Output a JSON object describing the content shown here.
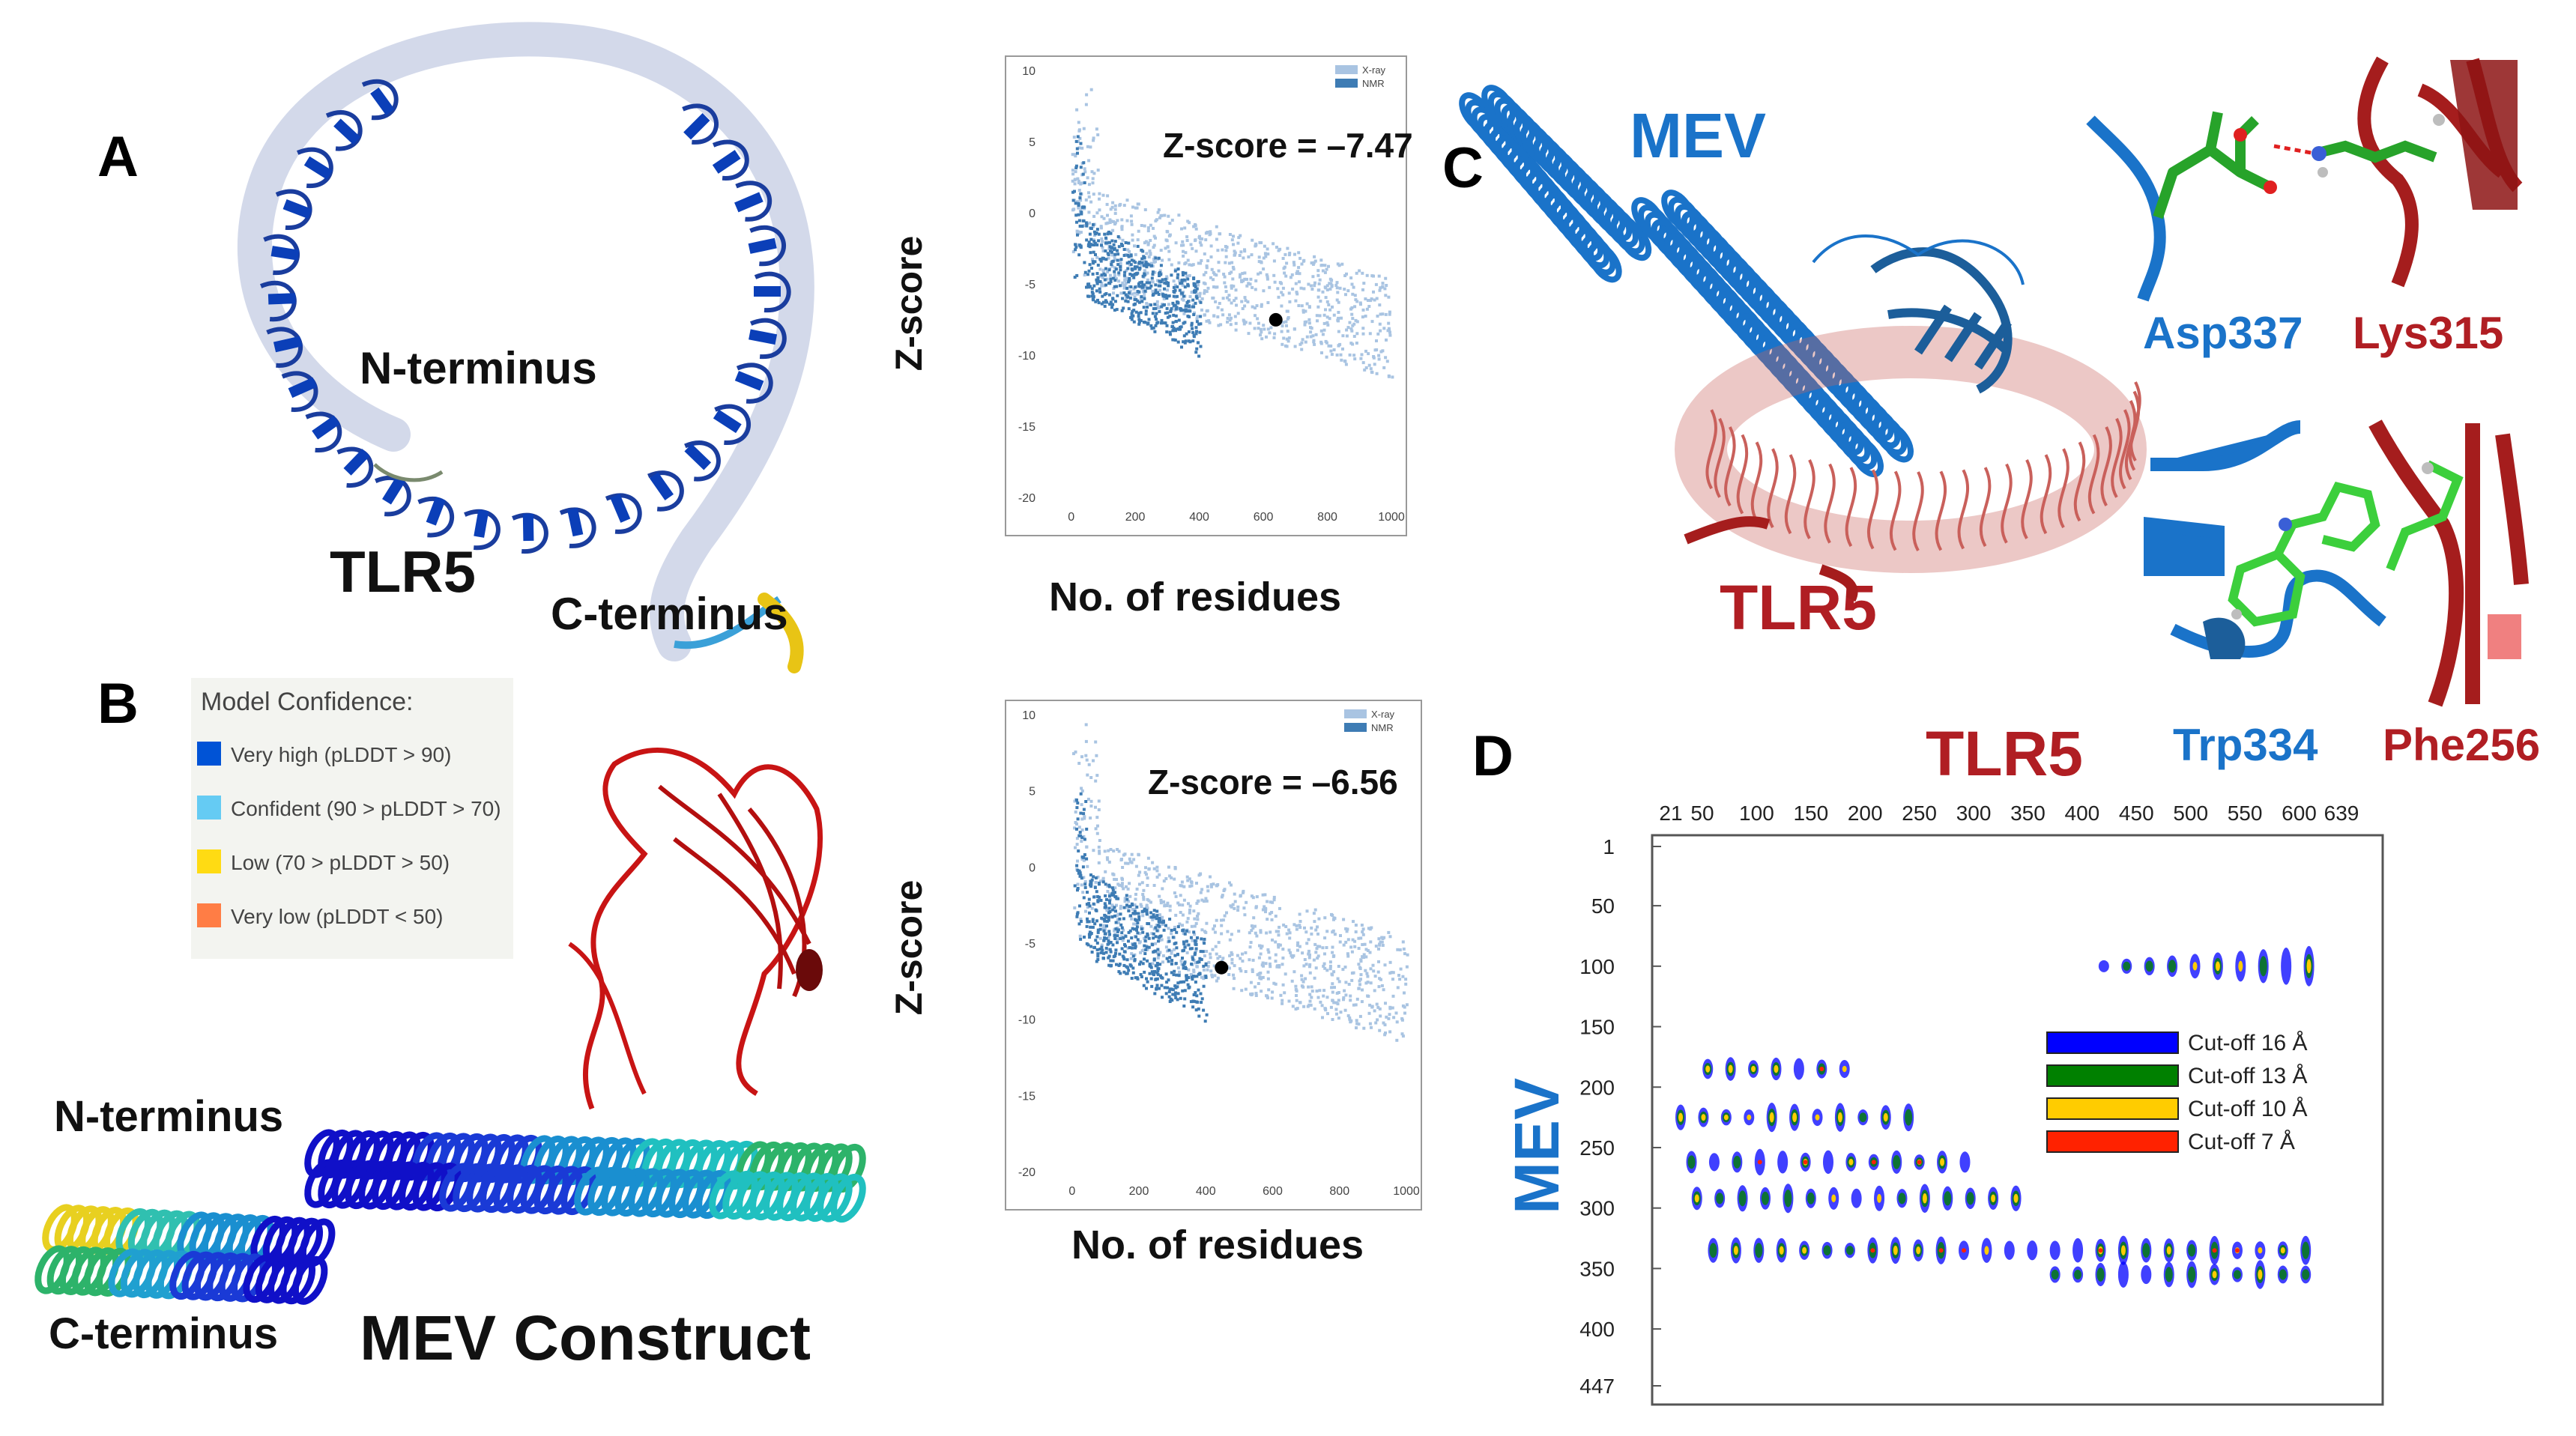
{
  "panels": {
    "A": {
      "letter": "A",
      "protein_label": "TLR5",
      "n_terminus": "N-terminus",
      "c_terminus": "C-terminus",
      "zplot": {
        "zscore_text": "Z-score = –7.47",
        "ylabel": "Z-score",
        "xlabel": "No. of residues",
        "legend_xray": "X-ray",
        "legend_nmr": "NMR",
        "x_ticks": [
          "0",
          "200",
          "400",
          "600",
          "800",
          "1000"
        ],
        "y_ticks": [
          "10",
          "5",
          "0",
          "-5",
          "-10",
          "-15",
          "-20"
        ],
        "point": {
          "x": 639,
          "y": -7.47
        }
      }
    },
    "B": {
      "letter": "B",
      "legend_title": "Model Confidence:",
      "legend_items": [
        {
          "label": "Very high (pLDDT > 90)",
          "color": "#0053d6"
        },
        {
          "label": "Confident (90 > pLDDT > 70)",
          "color": "#65cbf3"
        },
        {
          "label": "Low (70 > pLDDT > 50)",
          "color": "#ffdb13"
        },
        {
          "label": "Very low (pLDDT < 50)",
          "color": "#ff7d45"
        }
      ],
      "n_terminus": "N-terminus",
      "c_terminus": "C-terminus",
      "construct_label": "MEV Construct",
      "zplot": {
        "zscore_text": "Z-score = –6.56",
        "ylabel": "Z-score",
        "xlabel": "No. of residues",
        "legend_xray": "X-ray",
        "legend_nmr": "NMR",
        "x_ticks": [
          "0",
          "200",
          "400",
          "600",
          "800",
          "1000"
        ],
        "y_ticks": [
          "10",
          "5",
          "0",
          "-5",
          "-10",
          "-15",
          "-20"
        ],
        "point": {
          "x": 447,
          "y": -6.56
        }
      }
    },
    "C": {
      "letter": "C",
      "mev_label": "MEV",
      "tlr5_label": "TLR5",
      "residues": {
        "asp": "Asp337",
        "lys": "Lys315",
        "trp": "Trp334",
        "phe": "Phe256"
      }
    },
    "D": {
      "letter": "D",
      "top_label": "TLR5",
      "side_label": "MEV",
      "x_ticks": [
        "21",
        "50",
        "100",
        "150",
        "200",
        "250",
        "300",
        "350",
        "400",
        "450",
        "500",
        "550",
        "600",
        "639"
      ],
      "y_ticks": [
        "1",
        "50",
        "100",
        "150",
        "200",
        "250",
        "300",
        "350",
        "400",
        "447"
      ],
      "legend": [
        {
          "label": "Cut-off 16 Å",
          "color": "#0000ff"
        },
        {
          "label": "Cut-off 13 Å",
          "color": "#008000"
        },
        {
          "label": "Cut-off 10 Å",
          "color": "#ffcc00"
        },
        {
          "label": "Cut-off 7 Å",
          "color": "#ff2200"
        }
      ]
    }
  },
  "colors": {
    "mev_blue": "#1a73c9",
    "tlr5_red": "#b01e23",
    "dark_navy": "#0b2f8a",
    "xray_light": "#a9c4e2",
    "nmr_dark": "#3e7cb4"
  }
}
